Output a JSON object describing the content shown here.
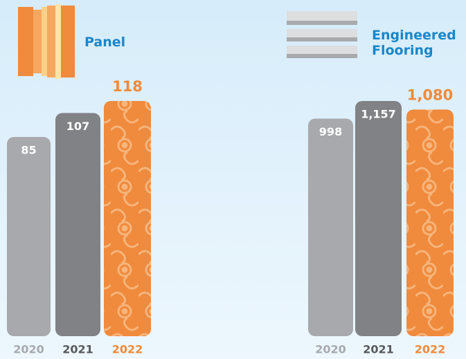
{
  "chart_data": [
    {
      "type": "bar",
      "title": "Panel",
      "categories": [
        "2020",
        "2021",
        "2022"
      ],
      "values": [
        85,
        107,
        118
      ],
      "colors": [
        "#a7a9ac",
        "#808285",
        "#f08a3c"
      ],
      "label_colors": [
        "#a7a9ac",
        "#58595b",
        "#f08a3c"
      ]
    },
    {
      "type": "bar",
      "title": "Engineered Flooring",
      "categories": [
        "2020",
        "2021",
        "2022"
      ],
      "values": [
        998,
        1157,
        1080
      ],
      "value_labels": [
        "998",
        "1,157",
        "1,080"
      ],
      "colors": [
        "#a7a9ac",
        "#808285",
        "#f08a3c"
      ],
      "label_colors": [
        "#a7a9ac",
        "#58595b",
        "#f08a3c"
      ]
    }
  ]
}
